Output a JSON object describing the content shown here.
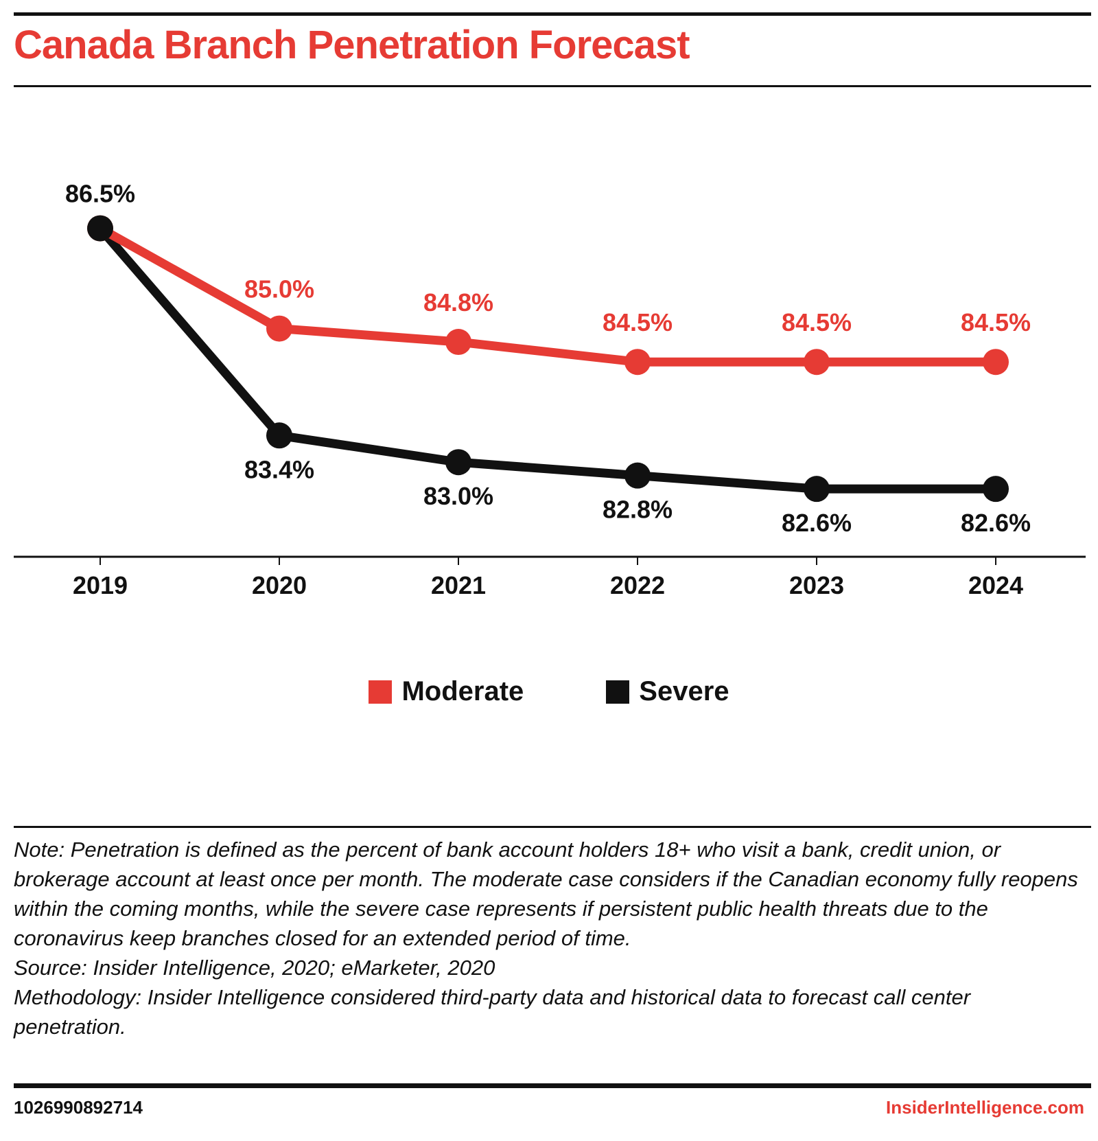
{
  "title": "Canada Branch Penetration Forecast",
  "colors": {
    "moderate": "#e63b34",
    "severe": "#111111",
    "title": "#e63b34"
  },
  "chart_data": {
    "type": "line",
    "title": "Canada Branch Penetration Forecast",
    "xlabel": "",
    "ylabel": "",
    "categories": [
      "2019",
      "2020",
      "2021",
      "2022",
      "2023",
      "2024"
    ],
    "ylim": [
      81.8,
      87.4
    ],
    "grid": false,
    "legend_position": "bottom-center",
    "series": [
      {
        "name": "Moderate",
        "color": "#e63b34",
        "values": [
          86.5,
          85.0,
          84.8,
          84.5,
          84.5,
          84.5
        ],
        "labels": [
          "",
          "85.0%",
          "84.8%",
          "84.5%",
          "84.5%",
          "84.5%"
        ]
      },
      {
        "name": "Severe",
        "color": "#111111",
        "values": [
          86.5,
          83.4,
          83.0,
          82.8,
          82.6,
          82.6
        ],
        "labels": [
          "86.5%",
          "83.4%",
          "83.0%",
          "82.8%",
          "82.6%",
          "82.6%"
        ]
      }
    ]
  },
  "legend": {
    "moderate": "Moderate",
    "severe": "Severe"
  },
  "notes": {
    "note": "Note: Penetration is defined as the percent of bank account holders 18+ who visit a bank, credit union, or brokerage account at least once per month. The moderate case considers if the Canadian economy fully reopens within the coming months, while the severe case represents if persistent public health threats due to the coronavirus keep branches closed for an extended period of time.",
    "source": "Source: Insider Intelligence, 2020; eMarketer, 2020",
    "methodology": "Methodology: Insider Intelligence considered third-party data and historical data to forecast call center penetration."
  },
  "footer": {
    "id": "1026990892714",
    "brand": "InsiderIntelligence.com"
  }
}
